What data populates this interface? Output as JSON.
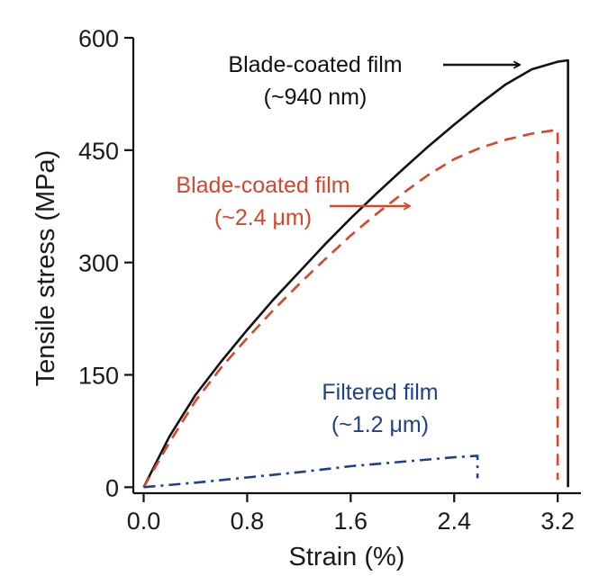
{
  "chart_data": {
    "type": "line",
    "title": "",
    "xlabel": "Strain (%)",
    "ylabel": "Tensile stress (MPa)",
    "xlim": [
      -0.08,
      3.38
    ],
    "ylim": [
      -8,
      600
    ],
    "xticks": [
      0.0,
      0.8,
      1.6,
      2.4,
      3.2
    ],
    "xtick_labels": [
      "0.0",
      "0.8",
      "1.6",
      "2.4",
      "3.2"
    ],
    "yticks": [
      0,
      150,
      300,
      450,
      600
    ],
    "ytick_labels": [
      "0",
      "150",
      "300",
      "450",
      "600"
    ],
    "grid": false,
    "legend": "none",
    "series": [
      {
        "name": "Blade-coated film (~940 nm)",
        "color": "#111111",
        "dash": "solid",
        "x": [
          0.0,
          0.2,
          0.4,
          0.6,
          0.8,
          1.0,
          1.2,
          1.4,
          1.6,
          1.8,
          2.0,
          2.2,
          2.4,
          2.6,
          2.8,
          3.0,
          3.2,
          3.28,
          3.28
        ],
        "y": [
          0,
          68,
          123,
          168,
          210,
          250,
          287,
          324,
          359,
          392,
          424,
          455,
          484,
          512,
          538,
          558,
          568,
          570,
          0
        ]
      },
      {
        "name": "Blade-coated film (~2.4 μm)",
        "color": "#d9442a",
        "dash": "dashed",
        "x": [
          0.0,
          0.2,
          0.4,
          0.6,
          0.8,
          1.0,
          1.2,
          1.4,
          1.6,
          1.8,
          2.0,
          2.2,
          2.4,
          2.6,
          2.8,
          3.0,
          3.15,
          3.2,
          3.2
        ],
        "y": [
          0,
          60,
          115,
          160,
          199,
          236,
          271,
          304,
          336,
          365,
          392,
          417,
          438,
          453,
          464,
          472,
          476,
          477,
          10
        ]
      },
      {
        "name": "Filtered film (~1.2 μm)",
        "color": "#1f3f8f",
        "dash": "dashdot",
        "x": [
          0.0,
          0.4,
          0.8,
          1.2,
          1.6,
          2.0,
          2.4,
          2.58,
          2.58
        ],
        "y": [
          0,
          6,
          13,
          20,
          28,
          34,
          40,
          42,
          12
        ]
      }
    ],
    "annotations": [
      {
        "series": 0,
        "lines": [
          "Blade-coated film",
          "(~940 nm)"
        ],
        "color": "#111111",
        "arrow_to": [
          3.22,
          566
        ]
      },
      {
        "series": 1,
        "lines": [
          "Blade-coated film",
          "(~2.4 μm)"
        ],
        "color": "#d9442a",
        "arrow_to": [
          2.2,
          370
        ]
      },
      {
        "series": 2,
        "lines": [
          "Filtered film",
          "(~1.2 μm)"
        ],
        "color": "#1f3f8f"
      }
    ]
  }
}
